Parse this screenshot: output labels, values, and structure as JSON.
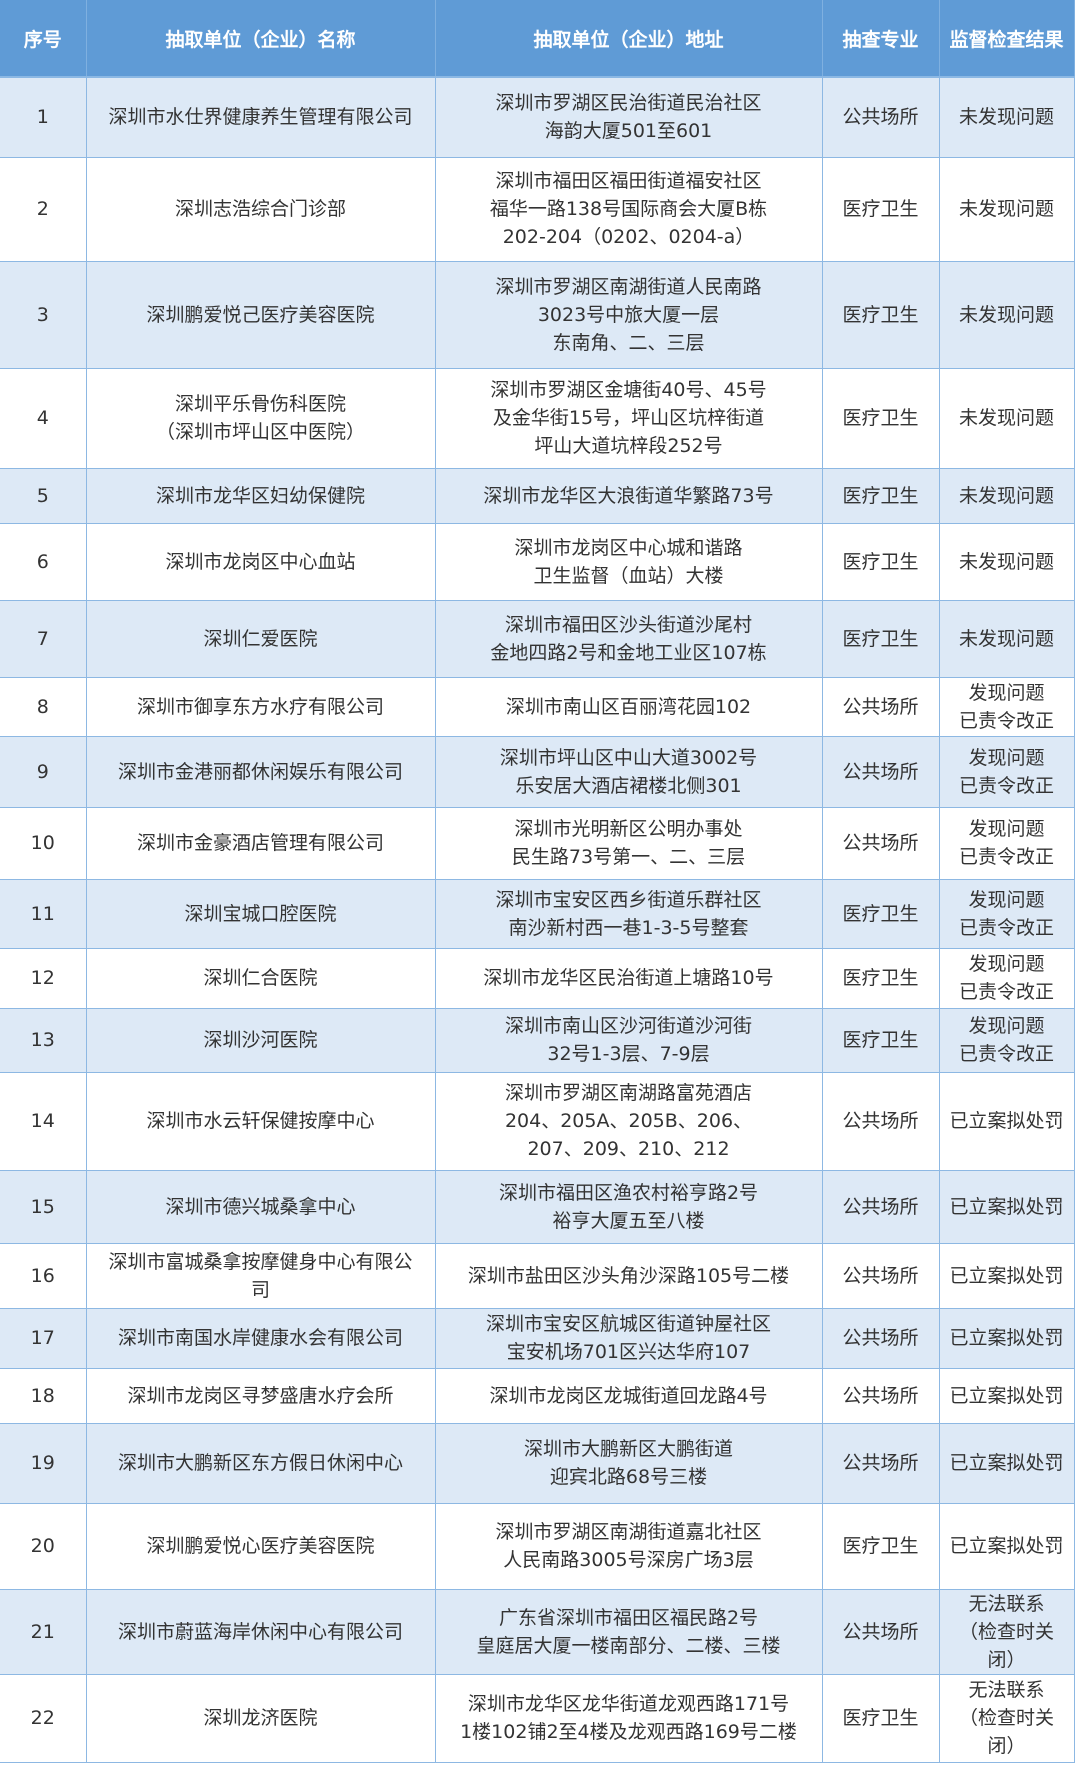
{
  "headers": [
    "序号",
    "抽取单位（企业）名称",
    "抽取单位（企业）地址",
    "抽查专业",
    "监督检查结果"
  ],
  "rows": [
    {
      "no": "1",
      "name": "深圳市水仕界健康养生管理有限公司",
      "address": "深圳市罗湖区民治街道民治社区\n海韵大厦501至601",
      "category": "公共场所",
      "result": "未发现问题"
    },
    {
      "no": "2",
      "name": "深圳志浩综合门诊部",
      "address": "深圳市福田区福田街道福安社区\n福华一路138号国际商会大厦B栋\n202-204（0202、0204-a）",
      "category": "医疗卫生",
      "result": "未发现问题"
    },
    {
      "no": "3",
      "name": "深圳鹏爱悦己医疗美容医院",
      "address": "深圳市罗湖区南湖街道人民南路\n3023号中旅大厦一层\n东南角、二、三层",
      "category": "医疗卫生",
      "result": "未发现问题"
    },
    {
      "no": "4",
      "name": "深圳平乐骨伤科医院\n（深圳市坪山区中医院）",
      "address": "深圳市罗湖区金塘街40号、45号\n及金华街15号，坪山区坑梓街道\n坪山大道坑梓段252号",
      "category": "医疗卫生",
      "result": "未发现问题"
    },
    {
      "no": "5",
      "name": "深圳市龙华区妇幼保健院",
      "address": "深圳市龙华区大浪街道华繁路73号",
      "category": "医疗卫生",
      "result": "未发现问题"
    },
    {
      "no": "6",
      "name": "深圳市龙岗区中心血站",
      "address": "深圳市龙岗区中心城和谐路\n卫生监督（血站）大楼",
      "category": "医疗卫生",
      "result": "未发现问题"
    },
    {
      "no": "7",
      "name": "深圳仁爱医院",
      "address": "深圳市福田区沙头街道沙尾村\n金地四路2号和金地工业区107栋",
      "category": "医疗卫生",
      "result": "未发现问题"
    },
    {
      "no": "8",
      "name": "深圳市御享东方水疗有限公司",
      "address": "深圳市南山区百丽湾花园102",
      "category": "公共场所",
      "result": "发现问题\n已责令改正"
    },
    {
      "no": "9",
      "name": "深圳市金港丽都休闲娱乐有限公司",
      "address": "深圳市坪山区中山大道3002号\n乐安居大酒店裙楼北侧301",
      "category": "公共场所",
      "result": "发现问题\n已责令改正"
    },
    {
      "no": "10",
      "name": "深圳市金豪酒店管理有限公司",
      "address": "深圳市光明新区公明办事处\n民生路73号第一、二、三层",
      "category": "公共场所",
      "result": "发现问题\n已责令改正"
    },
    {
      "no": "11",
      "name": "深圳宝城口腔医院",
      "address": "深圳市宝安区西乡街道乐群社区\n南沙新村西一巷1-3-5号整套",
      "category": "医疗卫生",
      "result": "发现问题\n已责令改正"
    },
    {
      "no": "12",
      "name": "深圳仁合医院",
      "address": "深圳市龙华区民治街道上塘路10号",
      "category": "医疗卫生",
      "result": "发现问题\n已责令改正"
    },
    {
      "no": "13",
      "name": "深圳沙河医院",
      "address": "深圳市南山区沙河街道沙河街\n32号1-3层、7-9层",
      "category": "医疗卫生",
      "result": "发现问题\n已责令改正"
    },
    {
      "no": "14",
      "name": "深圳市水云轩保健按摩中心",
      "address": "深圳市罗湖区南湖路富苑酒店\n204、205A、205B、206、\n207、209、210、212",
      "category": "公共场所",
      "result": "已立案拟处罚"
    },
    {
      "no": "15",
      "name": "深圳市德兴城桑拿中心",
      "address": "深圳市福田区渔农村裕亨路2号\n裕亨大厦五至八楼",
      "category": "公共场所",
      "result": "已立案拟处罚"
    },
    {
      "no": "16",
      "name": "深圳市富城桑拿按摩健身中心有限公\n司",
      "address": "深圳市盐田区沙头角沙深路105号二楼",
      "category": "公共场所",
      "result": "已立案拟处罚"
    },
    {
      "no": "17",
      "name": "深圳市南国水岸健康水会有限公司",
      "address": "深圳市宝安区航城区街道钟屋社区\n宝安机场701区兴达华府107",
      "category": "公共场所",
      "result": "已立案拟处罚"
    },
    {
      "no": "18",
      "name": "深圳市龙岗区寻梦盛唐水疗会所",
      "address": "深圳市龙岗区龙城街道回龙路4号",
      "category": "公共场所",
      "result": "已立案拟处罚"
    },
    {
      "no": "19",
      "name": "深圳市大鹏新区东方假日休闲中心",
      "address": "深圳市大鹏新区大鹏街道\n迎宾北路68号三楼",
      "category": "公共场所",
      "result": "已立案拟处罚"
    },
    {
      "no": "20",
      "name": "深圳鹏爱悦心医疗美容医院",
      "address": "深圳市罗湖区南湖街道嘉北社区\n人民南路3005号深房广场3层",
      "category": "医疗卫生",
      "result": "已立案拟处罚"
    },
    {
      "no": "21",
      "name": "深圳市蔚蓝海岸休闲中心有限公司",
      "address": "广东省深圳市福田区福民路2号\n皇庭居大厦一楼南部分、二楼、三楼",
      "category": "公共场所",
      "result": "无法联系\n（检查时关\n闭）"
    },
    {
      "no": "22",
      "name": "深圳龙济医院",
      "address": "深圳市龙华区龙华街道龙观西路171号\n1楼102铺2至4楼及龙观西路169号二楼",
      "category": "医疗卫生",
      "result": "无法联系\n（检查时关\n闭）"
    }
  ]
}
